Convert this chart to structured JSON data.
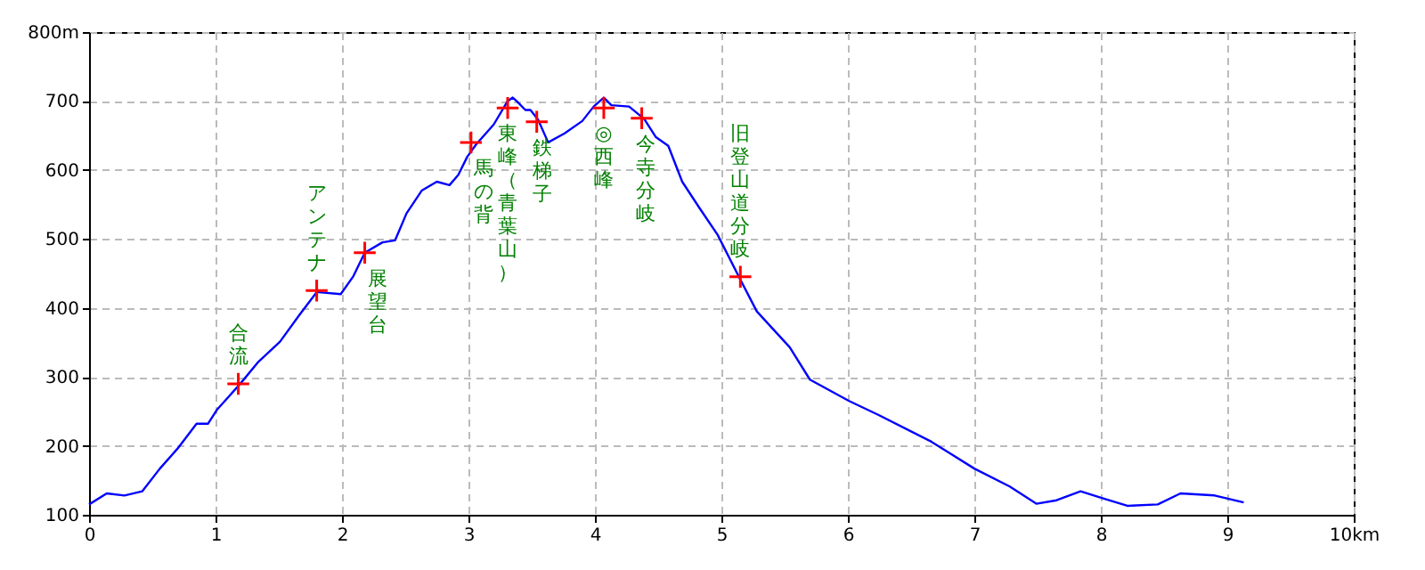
{
  "chart_data": {
    "type": "line",
    "x": [
      0,
      0.14,
      0.28,
      0.42,
      0.56,
      0.7,
      0.85,
      0.94,
      1.01,
      1.2,
      1.34,
      1.51,
      1.66,
      1.8,
      1.99,
      2.09,
      2.18,
      2.32,
      2.42,
      2.51,
      2.63,
      2.75,
      2.85,
      2.92,
      2.99,
      3.06,
      3.2,
      3.31,
      3.35,
      3.38,
      3.45,
      3.49,
      3.55,
      3.63,
      3.76,
      3.9,
      3.99,
      4.07,
      4.13,
      4.27,
      4.39,
      4.48,
      4.58,
      4.69,
      4.83,
      4.97,
      5.15,
      5.28,
      5.54,
      5.7,
      6.01,
      6.24,
      6.66,
      7.0,
      7.28,
      7.49,
      7.65,
      7.84,
      8.03,
      8.21,
      8.45,
      8.63,
      8.9,
      9.13
    ],
    "series": [
      {
        "type": "line",
        "color": "#0000ff",
        "marker": "none",
        "values": [
          115,
          131,
          128,
          134,
          167,
          196,
          232,
          232,
          252,
          291,
          322,
          351,
          389,
          423,
          420,
          446,
          480,
          495,
          498,
          537,
          570,
          583,
          578,
          593,
          619,
          637,
          666,
          700,
          705,
          700,
          687,
          687,
          673,
          640,
          653,
          671,
          692,
          705,
          694,
          692,
          674,
          648,
          635,
          583,
          544,
          506,
          441,
          395,
          343,
          296,
          265,
          245,
          206,
          167,
          141,
          116,
          121,
          134,
          123,
          113,
          115,
          131,
          128,
          118
        ]
      },
      {
        "type": "scatter",
        "color": "#ff0000",
        "marker": "cross",
        "x": [
          1.18,
          1.8,
          2.18,
          3.02,
          3.31,
          3.54,
          4.07,
          4.37,
          5.15
        ],
        "values": [
          290,
          425,
          480,
          640,
          690,
          670,
          690,
          675,
          445
        ]
      }
    ],
    "annotations": [
      {
        "text": "合流",
        "x": 1.18,
        "y": 290
      },
      {
        "text": "アンテナ",
        "x": 1.8,
        "y": 425
      },
      {
        "text": "展望台",
        "x": 2.18,
        "y": 480
      },
      {
        "text": "馬の背",
        "x": 3.02,
        "y": 640
      },
      {
        "text": "東峰（青葉山）",
        "x": 3.31,
        "y": 690
      },
      {
        "text": "鉄梯子",
        "x": 3.54,
        "y": 670
      },
      {
        "text": "◎西峰",
        "x": 4.07,
        "y": 690
      },
      {
        "text": "今寺分岐",
        "x": 4.37,
        "y": 675
      },
      {
        "text": "旧登山道分岐",
        "x": 5.15,
        "y": 445
      }
    ],
    "xlim": [
      0,
      10
    ],
    "xticks": [
      0,
      1,
      2,
      3,
      4,
      5,
      6,
      7,
      8,
      9,
      {
        "value": 10,
        "label": "10km"
      }
    ],
    "ylim": [
      100,
      800
    ],
    "yticks": [
      100,
      200,
      300,
      400,
      500,
      600,
      700,
      {
        "value": 800,
        "label": "800m"
      }
    ],
    "grid": true
  }
}
